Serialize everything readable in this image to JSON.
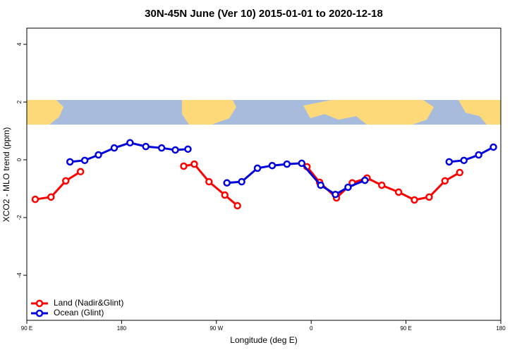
{
  "chart_data": {
    "type": "line",
    "title": "30N-45N June (Ver 10)   2015-01-01 to 2020-12-18",
    "x_label": "Longitude (deg E)",
    "y_label": "XCO2 - MLO trend (ppm)",
    "xlim": [
      90,
      540
    ],
    "xticks": [
      {
        "value": 90,
        "label": "90 E"
      },
      180,
      {
        "value": 270,
        "label": "90 W"
      },
      {
        "value": 360,
        "label": "0"
      },
      {
        "value": 450,
        "label": "90 E"
      },
      {
        "value": 540,
        "label": "180"
      }
    ],
    "ylim": [
      -5.56,
      4.56
    ],
    "yticks": [
      -4,
      -2,
      0,
      2,
      4
    ],
    "legend": "bottom-left",
    "series": [
      {
        "name": "Land (Nadir&Glint)",
        "color": "#ff0000",
        "x": [
          98,
          113,
          127,
          141,
          null,
          239,
          249,
          263,
          278,
          290,
          null,
          356,
          368,
          384,
          399,
          413,
          427,
          443,
          458,
          472,
          487,
          501
        ],
        "values": [
          -1.37,
          -1.29,
          -0.73,
          -0.41,
          null,
          -0.22,
          -0.15,
          -0.76,
          -1.22,
          -1.59,
          null,
          -0.24,
          -0.78,
          -1.32,
          -0.8,
          -0.63,
          -0.88,
          -1.12,
          -1.39,
          -1.29,
          -0.73,
          -0.44
        ]
      },
      {
        "name": "Ocean (Glint)",
        "color": "#0000dd",
        "x": [
          131,
          145,
          158,
          173,
          188,
          203,
          218,
          231,
          243,
          null,
          280,
          294,
          309,
          323,
          337,
          351,
          369,
          383,
          395,
          411,
          null,
          491,
          505,
          519,
          533
        ],
        "values": [
          -0.07,
          -0.02,
          0.17,
          0.41,
          0.59,
          0.46,
          0.41,
          0.34,
          0.37,
          null,
          -0.8,
          -0.76,
          -0.29,
          -0.2,
          -0.15,
          -0.12,
          -0.88,
          -1.2,
          -0.95,
          -0.71,
          null,
          -0.07,
          -0.02,
          0.17,
          0.44
        ]
      }
    ]
  }
}
